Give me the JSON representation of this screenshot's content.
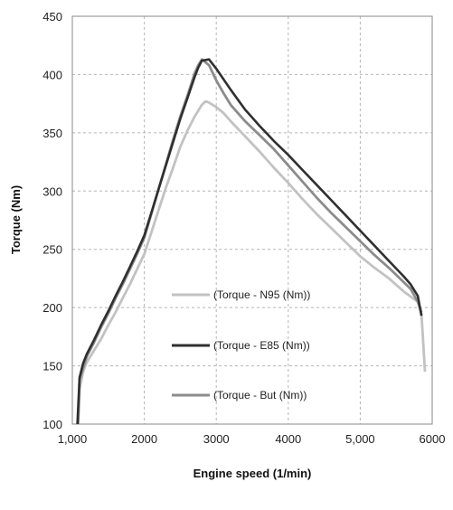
{
  "chart_data": {
    "type": "line",
    "xlabel": "Engine speed (1/min)",
    "ylabel": "Torque (Nm)",
    "xlim": [
      1000,
      6000
    ],
    "ylim": [
      100,
      450
    ],
    "x_ticks": [
      1000,
      2000,
      3000,
      4000,
      5000,
      6000
    ],
    "x_tick_labels": [
      "1,000",
      "2000",
      "3000",
      "4000",
      "5,000",
      "6000"
    ],
    "y_ticks": [
      100,
      150,
      200,
      250,
      300,
      350,
      400,
      450
    ],
    "y_tick_labels": [
      "100",
      "150",
      "200",
      "250",
      "300",
      "350",
      "400",
      "450"
    ],
    "grid": true,
    "legend_position": "center-right",
    "series": [
      {
        "name": "(Torque - N95 (Nm))",
        "color": "#c2c2c2",
        "x": [
          1080,
          1100,
          1150,
          1200,
          1300,
          1400,
          1500,
          1600,
          1700,
          1800,
          1900,
          2000,
          2100,
          2200,
          2300,
          2400,
          2500,
          2600,
          2700,
          2800,
          2850,
          2900,
          3000,
          3100,
          3200,
          3400,
          3600,
          3800,
          4000,
          4200,
          4400,
          4600,
          4800,
          5000,
          5200,
          5400,
          5600,
          5800,
          5850,
          5900
        ],
        "y": [
          100,
          130,
          145,
          153,
          163,
          173,
          185,
          196,
          208,
          220,
          233,
          246,
          265,
          284,
          303,
          320,
          338,
          352,
          364,
          374,
          377,
          376,
          372,
          367,
          360,
          347,
          334,
          320,
          307,
          293,
          280,
          268,
          256,
          244,
          234,
          225,
          214,
          205,
          195,
          145
        ]
      },
      {
        "name": "(Torque - E85 (Nm))",
        "color": "#2f2f2f",
        "x": [
          1070,
          1100,
          1150,
          1200,
          1300,
          1400,
          1500,
          1600,
          1700,
          1800,
          1900,
          2000,
          2100,
          2200,
          2300,
          2400,
          2500,
          2600,
          2700,
          2750,
          2800,
          2900,
          3000,
          3100,
          3200,
          3400,
          3600,
          3800,
          4000,
          4200,
          4400,
          4600,
          4800,
          5000,
          5200,
          5400,
          5600,
          5700,
          5800,
          5850
        ],
        "y": [
          100,
          140,
          152,
          160,
          172,
          185,
          197,
          210,
          222,
          235,
          248,
          262,
          282,
          302,
          322,
          342,
          362,
          380,
          398,
          406,
          412,
          413,
          405,
          396,
          387,
          370,
          356,
          343,
          331,
          318,
          305,
          292,
          279,
          266,
          253,
          240,
          227,
          220,
          210,
          193
        ]
      },
      {
        "name": "(Torque - But (Nm))",
        "color": "#8c8c8c",
        "x": [
          1080,
          1100,
          1150,
          1200,
          1300,
          1400,
          1500,
          1600,
          1700,
          1800,
          1900,
          2000,
          2100,
          2200,
          2300,
          2400,
          2500,
          2600,
          2700,
          2750,
          2800,
          2900,
          3000,
          3100,
          3200,
          3400,
          3600,
          3800,
          4000,
          4200,
          4400,
          4600,
          4800,
          5000,
          5200,
          5400,
          5600,
          5700,
          5800,
          5850
        ],
        "y": [
          100,
          138,
          148,
          158,
          170,
          183,
          195,
          208,
          220,
          233,
          246,
          260,
          281,
          302,
          323,
          344,
          364,
          382,
          401,
          408,
          413,
          408,
          395,
          384,
          374,
          360,
          348,
          336,
          322,
          308,
          294,
          281,
          269,
          257,
          245,
          234,
          222,
          216,
          205,
          196
        ]
      }
    ]
  }
}
